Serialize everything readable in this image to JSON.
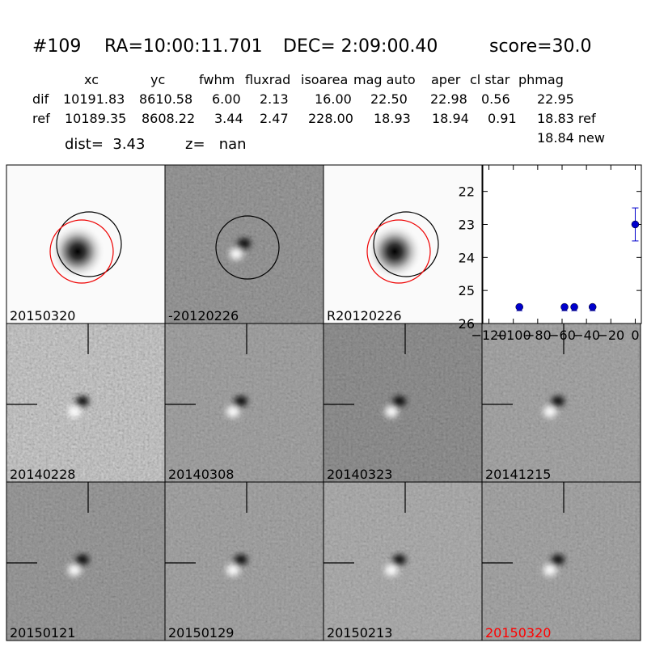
{
  "header": {
    "id": "#109",
    "ra": "RA=10:00:11.701",
    "dec": "DEC= 2:09:00.40",
    "score": "score=30.0"
  },
  "table": {
    "columns": [
      "xc",
      "yc",
      "fwhm",
      "fluxrad",
      "isoarea",
      "mag auto",
      "aper",
      "cl star",
      "phmag"
    ],
    "rows": [
      [
        "dif",
        "10191.83",
        "8610.58",
        "6.00",
        "2.13",
        "16.00",
        "22.50",
        "22.98",
        "0.56",
        "22.95"
      ],
      [
        "ref",
        "10189.35",
        "8608.22",
        "3.44",
        "2.47",
        "228.00",
        "18.93",
        "18.94",
        "0.91",
        "18.83 ref"
      ]
    ],
    "extra": "18.84 new"
  },
  "summary": {
    "dist": "dist=  3.43",
    "z": "z=   nan"
  },
  "stamps": [
    {
      "label": "20150320"
    },
    {
      "label": "-20120226"
    },
    {
      "label": "R20120226"
    },
    {
      "label": "20140228"
    },
    {
      "label": "20140308"
    },
    {
      "label": "20140323"
    },
    {
      "label": "20141215"
    },
    {
      "label": "20150121"
    },
    {
      "label": "20150129"
    },
    {
      "label": "20150213"
    },
    {
      "label": "20150320",
      "label_color": "#ff0000"
    }
  ],
  "chart_data": {
    "type": "scatter",
    "x": [
      -95,
      -58,
      -50,
      -35,
      0
    ],
    "values": [
      25.5,
      25.5,
      25.5,
      25.5,
      23.0
    ],
    "errors": [
      null,
      null,
      null,
      null,
      0.5
    ],
    "color": "#0000cc",
    "xlim": [
      -125,
      5
    ],
    "ylim": [
      26,
      21.2
    ],
    "xticks": [
      {
        "value": -120,
        "label": "−120"
      },
      {
        "value": -100,
        "label": "−100"
      },
      {
        "value": -80,
        "label": "−80"
      },
      {
        "value": -60,
        "label": "−60"
      },
      {
        "value": -40,
        "label": "−40"
      },
      {
        "value": -20,
        "label": "−20"
      },
      0
    ],
    "yticks": [
      22,
      23,
      24,
      25,
      26
    ]
  }
}
